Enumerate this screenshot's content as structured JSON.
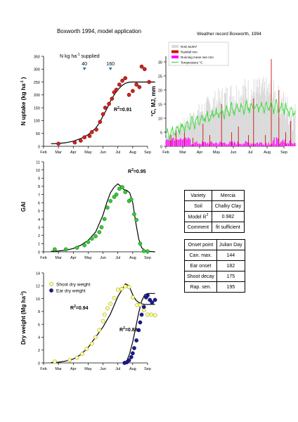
{
  "page_title": "Boxworth 1994, model application",
  "colors": {
    "red": "#cc2222",
    "green": "#33cc33",
    "blue": "#1a1a99",
    "yellow": "#ffff99",
    "rad": "#d9d9d9",
    "rain": "#cc1111",
    "runmean": "#ff00ff",
    "temp": "#33dd33"
  },
  "months": [
    "Feb",
    "Mar",
    "Apr",
    "May",
    "Jun",
    "Jul",
    "Aug",
    "Sep"
  ],
  "chart_data": [
    {
      "type": "scatter",
      "id": "n_uptake",
      "ylabel": "N uptake (kg ha⁻¹ )",
      "ylabel_base": "N uptake (kg ha",
      "ylabel_sup": "-1",
      "ylabel_end": " )",
      "ylim": [
        0,
        350
      ],
      "yticks": [
        "0",
        "50",
        "100",
        "150",
        "200",
        "250",
        "300",
        "350"
      ],
      "r2_label": "R²=0.91",
      "annotation": {
        "pre": "N kg ha",
        "sup": "-1",
        "post": " supplied",
        "values": [
          "40",
          "160"
        ],
        "value_x": [
          2.75,
          4.5
        ]
      },
      "observed": {
        "color": "#cc2222",
        "x": [
          1.0,
          2.1,
          2.5,
          2.75,
          3.1,
          3.25,
          3.55,
          3.8,
          4.0,
          4.15,
          4.4,
          4.6,
          4.75,
          4.9,
          5.1,
          5.3,
          5.5,
          5.75,
          6.0,
          6.25,
          6.45,
          6.6,
          6.8,
          7.1
        ],
        "y": [
          10,
          15,
          22,
          35,
          40,
          55,
          65,
          95,
          125,
          150,
          165,
          185,
          210,
          220,
          240,
          255,
          265,
          200,
          215,
          240,
          230,
          310,
          300,
          250
        ]
      },
      "model": {
        "x": [
          0.5,
          1,
          1.5,
          2,
          2.5,
          3,
          3.5,
          3.75,
          4,
          4.25,
          4.5,
          4.75,
          5,
          5.25,
          5.5,
          5.75,
          6,
          6.5,
          7,
          7.5
        ],
        "y": [
          10,
          11,
          14,
          20,
          30,
          45,
          70,
          90,
          118,
          145,
          175,
          200,
          220,
          235,
          245,
          249,
          250,
          250,
          250,
          250
        ]
      }
    },
    {
      "type": "line",
      "id": "weather",
      "title": "Weather record Boxworth, 1994",
      "ylabel": "°C, MJ, mm",
      "ylim": [
        0,
        32
      ],
      "yticks": [
        "0",
        "5",
        "10",
        "15",
        "20",
        "25",
        "30"
      ],
      "legend": {
        "placement": "top-left",
        "items": [
          "RAD MJ/m²",
          "Rainfall mm",
          "Running mean rain mm",
          "Temperature °C"
        ]
      }
    },
    {
      "type": "scatter",
      "id": "gai",
      "ylabel": "GAI",
      "ylim": [
        0,
        11
      ],
      "yticks": [
        "0",
        "1",
        "2",
        "3",
        "4",
        "5",
        "6",
        "7",
        "8",
        "9",
        "10",
        "11"
      ],
      "r2_label": "R²=0.95",
      "observed": {
        "color": "#33cc33",
        "x": [
          0.75,
          1.5,
          2.25,
          2.75,
          3.0,
          3.25,
          3.5,
          3.75,
          3.9,
          4.1,
          4.3,
          4.5,
          4.75,
          4.9,
          5.1,
          5.3,
          5.5,
          5.75,
          5.9,
          6.1,
          6.25,
          6.5,
          6.75,
          7.0
        ],
        "y": [
          0.3,
          0.3,
          0.5,
          0.8,
          1.2,
          1.6,
          1.9,
          2.4,
          3.0,
          4.0,
          5.4,
          6.2,
          6.7,
          7.0,
          7.7,
          7.9,
          7.3,
          6.2,
          6.4,
          4.6,
          3.9,
          1.0,
          0.1,
          0.05
        ]
      },
      "model": {
        "x": [
          0.5,
          1,
          1.5,
          2,
          2.5,
          3,
          3.5,
          4,
          4.25,
          4.5,
          4.75,
          5,
          5.2,
          5.4,
          5.6,
          5.8,
          6,
          6.2,
          6.4,
          6.6,
          6.8,
          7,
          7.5
        ],
        "y": [
          0.05,
          0.1,
          0.2,
          0.4,
          0.8,
          1.4,
          2.4,
          4.5,
          6.0,
          7.2,
          7.9,
          8.3,
          8.0,
          7.6,
          7.5,
          7.2,
          6.0,
          3.6,
          1.6,
          0.5,
          0.2,
          0.05,
          0.0
        ]
      }
    },
    {
      "type": "scatter",
      "id": "dry_weight",
      "ylabel": "Dry weight (Mg ha⁻¹)",
      "ylabel_base": "Dry weight (Mg ha",
      "ylabel_sup": "-1",
      "ylabel_end": ")",
      "ylim": [
        0,
        14
      ],
      "yticks": [
        "0",
        "2",
        "4",
        "6",
        "8",
        "10",
        "12",
        "14"
      ],
      "r2_labels": [
        "R²=0.94",
        "R²=0.88"
      ],
      "series": [
        {
          "name": "Shoot dry weight",
          "color": "#ffff99",
          "edge": "#888800",
          "x": [
            0.75,
            1.75,
            2.25,
            2.6,
            2.9,
            3.25,
            3.5,
            3.75,
            4.0,
            4.1,
            4.3,
            4.5,
            4.75,
            5.0,
            5.25,
            5.5,
            5.75,
            6.0,
            6.3,
            6.5,
            6.75,
            7.0,
            7.25,
            7.5
          ],
          "y": [
            0.2,
            0.4,
            0.8,
            1.4,
            2.2,
            3.0,
            4.0,
            5.1,
            6.5,
            7.5,
            8.5,
            9.2,
            10.1,
            11.4,
            11.5,
            11.9,
            11.8,
            10.2,
            9.0,
            9.0,
            8.2,
            7.5,
            7.5,
            7.4
          ]
        },
        {
          "name": "Ear dry weight",
          "color": "#1a1a99",
          "edge": "#000033",
          "x": [
            5.45,
            5.6,
            5.75,
            5.9,
            6.0,
            6.1,
            6.25,
            6.4,
            6.5,
            6.6,
            6.75,
            6.9,
            7.0,
            7.15,
            7.3,
            7.5
          ],
          "y": [
            0.0,
            0.1,
            0.4,
            0.9,
            1.5,
            2.3,
            3.5,
            5.1,
            6.3,
            7.5,
            8.7,
            10.2,
            10.5,
            9.8,
            9.4,
            9.8
          ]
        }
      ],
      "models": [
        {
          "x": [
            0.5,
            1,
            1.5,
            2,
            2.5,
            3,
            3.5,
            4,
            4.5,
            5,
            5.5,
            5.75,
            6,
            6.2,
            6.4,
            6.6,
            6.8,
            7,
            7.5
          ],
          "y": [
            0.05,
            0.1,
            0.3,
            0.6,
            1.3,
            2.4,
            4.0,
            5.6,
            7.6,
            10.3,
            12.3,
            12.0,
            10.6,
            9.8,
            9.4,
            9.2,
            9.1,
            9.1,
            9.1
          ]
        },
        {
          "x": [
            5.45,
            5.6,
            5.8,
            6,
            6.2,
            6.4,
            6.6,
            6.8,
            7,
            7.2,
            7.5
          ],
          "y": [
            0,
            0.3,
            1.5,
            3.3,
            5.5,
            7.8,
            9.6,
            10.6,
            10.8,
            10.8,
            10.8
          ]
        }
      ]
    }
  ],
  "variety_table": {
    "rows": [
      {
        "label": "Variety",
        "value": "Mercia"
      },
      {
        "label": "Soil",
        "value": "Chalky Clay"
      },
      {
        "label_base": "Model R",
        "label_sup": "2",
        "value": "0.982"
      },
      {
        "label": "Comment",
        "value": "fit sufficient"
      }
    ]
  },
  "onset_table": {
    "header": {
      "label": "Onset point",
      "value": "Julian Day"
    },
    "rows": [
      {
        "label": "Can. max.",
        "value": "144"
      },
      {
        "label": "Ear onset",
        "value": "182"
      },
      {
        "label": "Shoot decay",
        "value": "175"
      },
      {
        "label": "Rap. sen.",
        "value": "195"
      }
    ]
  }
}
